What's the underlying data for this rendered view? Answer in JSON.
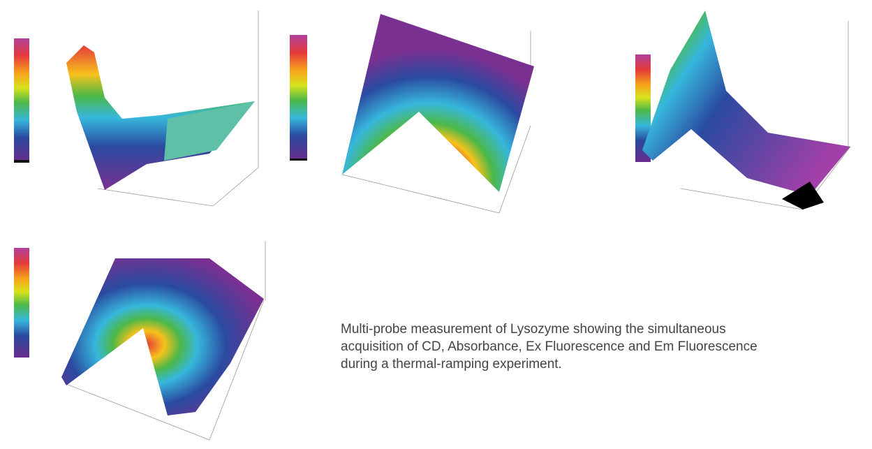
{
  "caption": {
    "lines": [
      "Multi-probe measurement of Lysozyme showing the simultaneous",
      "acquisition of CD, Absorbance, Ex Fluorescence and Em Fluorescence",
      "during a thermal-ramping experiment."
    ]
  }
}
